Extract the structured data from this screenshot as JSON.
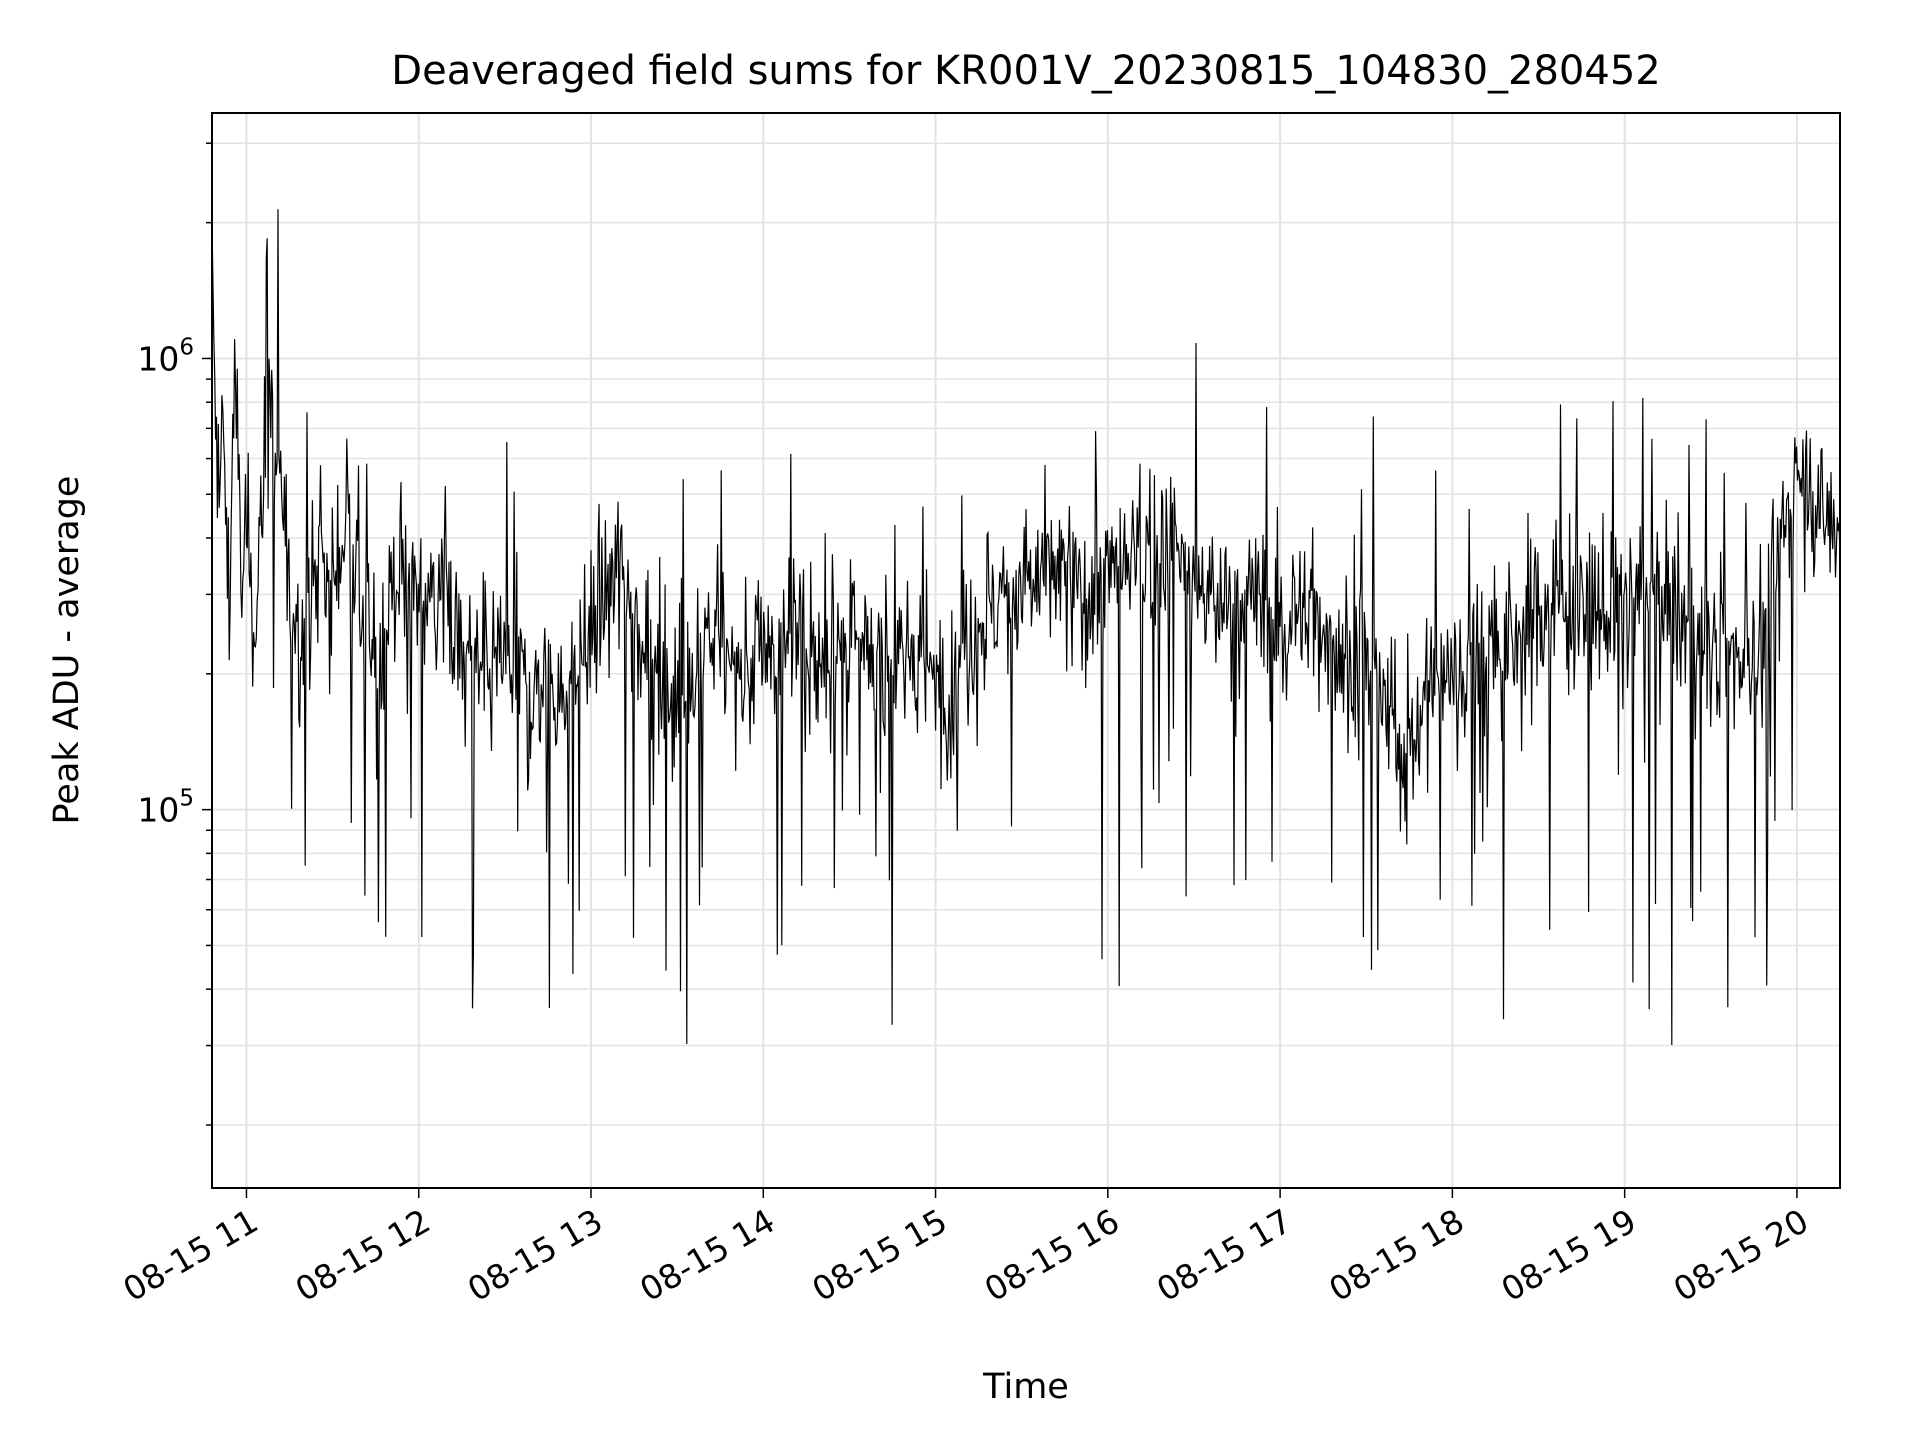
{
  "chart_data": {
    "type": "line",
    "title": "Deaveraged field sums for KR001V_20230815_104830_280452",
    "xlabel": "Time",
    "ylabel": "Peak ADU - average",
    "yscale": "log",
    "y_tick_labels": [
      {
        "base": "10",
        "exp": "5",
        "value": 100000
      },
      {
        "base": "10",
        "exp": "6",
        "value": 1000000
      }
    ],
    "x_tick_labels": [
      "08-15 11",
      "08-15 12",
      "08-15 13",
      "08-15 14",
      "08-15 15",
      "08-15 16",
      "08-15 17",
      "08-15 18",
      "08-15 19",
      "08-15 20"
    ],
    "x_tick_times": [
      "2023-08-15 11:00",
      "2023-08-15 12:00",
      "2023-08-15 13:00",
      "2023-08-15 14:00",
      "2023-08-15 15:00",
      "2023-08-15 16:00",
      "2023-08-15 17:00",
      "2023-08-15 18:00",
      "2023-08-15 19:00",
      "2023-08-15 20:00"
    ],
    "xlim": [
      "2023-08-15 10:48",
      "2023-08-15 20:15"
    ],
    "ylim": [
      14500,
      3500000
    ],
    "grid": true,
    "legend": "none",
    "series_color": "#000000",
    "series": [
      {
        "x": [
          "2023-08-15 10:48",
          "2023-08-15 10:50",
          "2023-08-15 10:52",
          "2023-08-15 10:54",
          "2023-08-15 10:56",
          "2023-08-15 10:58",
          "2023-08-15 11:00",
          "2023-08-15 11:02",
          "2023-08-15 11:04",
          "2023-08-15 11:06",
          "2023-08-15 11:08",
          "2023-08-15 11:10",
          "2023-08-15 11:15",
          "2023-08-15 11:20",
          "2023-08-15 11:25",
          "2023-08-15 11:30",
          "2023-08-15 11:35",
          "2023-08-15 11:40",
          "2023-08-15 11:45",
          "2023-08-15 11:50",
          "2023-08-15 11:55",
          "2023-08-15 12:00",
          "2023-08-15 12:05",
          "2023-08-15 12:10",
          "2023-08-15 12:20",
          "2023-08-15 12:30",
          "2023-08-15 12:40",
          "2023-08-15 12:45",
          "2023-08-15 12:50",
          "2023-08-15 13:00",
          "2023-08-15 13:05",
          "2023-08-15 13:10",
          "2023-08-15 13:20",
          "2023-08-15 13:30",
          "2023-08-15 13:40",
          "2023-08-15 13:50",
          "2023-08-15 14:00",
          "2023-08-15 14:10",
          "2023-08-15 14:20",
          "2023-08-15 14:30",
          "2023-08-15 14:40",
          "2023-08-15 14:50",
          "2023-08-15 15:00",
          "2023-08-15 15:05",
          "2023-08-15 15:10",
          "2023-08-15 15:20",
          "2023-08-15 15:30",
          "2023-08-15 15:40",
          "2023-08-15 15:50",
          "2023-08-15 16:00",
          "2023-08-15 16:10",
          "2023-08-15 16:20",
          "2023-08-15 16:30",
          "2023-08-15 16:40",
          "2023-08-15 16:50",
          "2023-08-15 17:00",
          "2023-08-15 17:10",
          "2023-08-15 17:20",
          "2023-08-15 17:30",
          "2023-08-15 17:40",
          "2023-08-15 17:45",
          "2023-08-15 17:50",
          "2023-08-15 18:00",
          "2023-08-15 18:10",
          "2023-08-15 18:20",
          "2023-08-15 18:30",
          "2023-08-15 18:40",
          "2023-08-15 18:50",
          "2023-08-15 19:00",
          "2023-08-15 19:10",
          "2023-08-15 19:20",
          "2023-08-15 19:30",
          "2023-08-15 19:40",
          "2023-08-15 19:50",
          "2023-08-15 19:55",
          "2023-08-15 20:00",
          "2023-08-15 20:05",
          "2023-08-15 20:10",
          "2023-08-15 20:15"
        ],
        "y": [
          1500000,
          450000,
          700000,
          250000,
          1200000,
          300000,
          450000,
          250000,
          350000,
          600000,
          800000,
          650000,
          300000,
          250000,
          350000,
          300000,
          450000,
          280000,
          200000,
          300000,
          350000,
          280000,
          320000,
          250000,
          200000,
          220000,
          180000,
          200000,
          170000,
          250000,
          300000,
          350000,
          220000,
          180000,
          250000,
          200000,
          220000,
          250000,
          200000,
          230000,
          210000,
          220000,
          200000,
          180000,
          240000,
          280000,
          300000,
          350000,
          300000,
          320000,
          350000,
          400000,
          320000,
          280000,
          300000,
          250000,
          280000,
          230000,
          200000,
          150000,
          120000,
          180000,
          200000,
          230000,
          220000,
          280000,
          300000,
          270000,
          280000,
          300000,
          250000,
          230000,
          220000,
          240000,
          400000,
          600000,
          500000,
          450000,
          400000
        ]
      }
    ]
  }
}
